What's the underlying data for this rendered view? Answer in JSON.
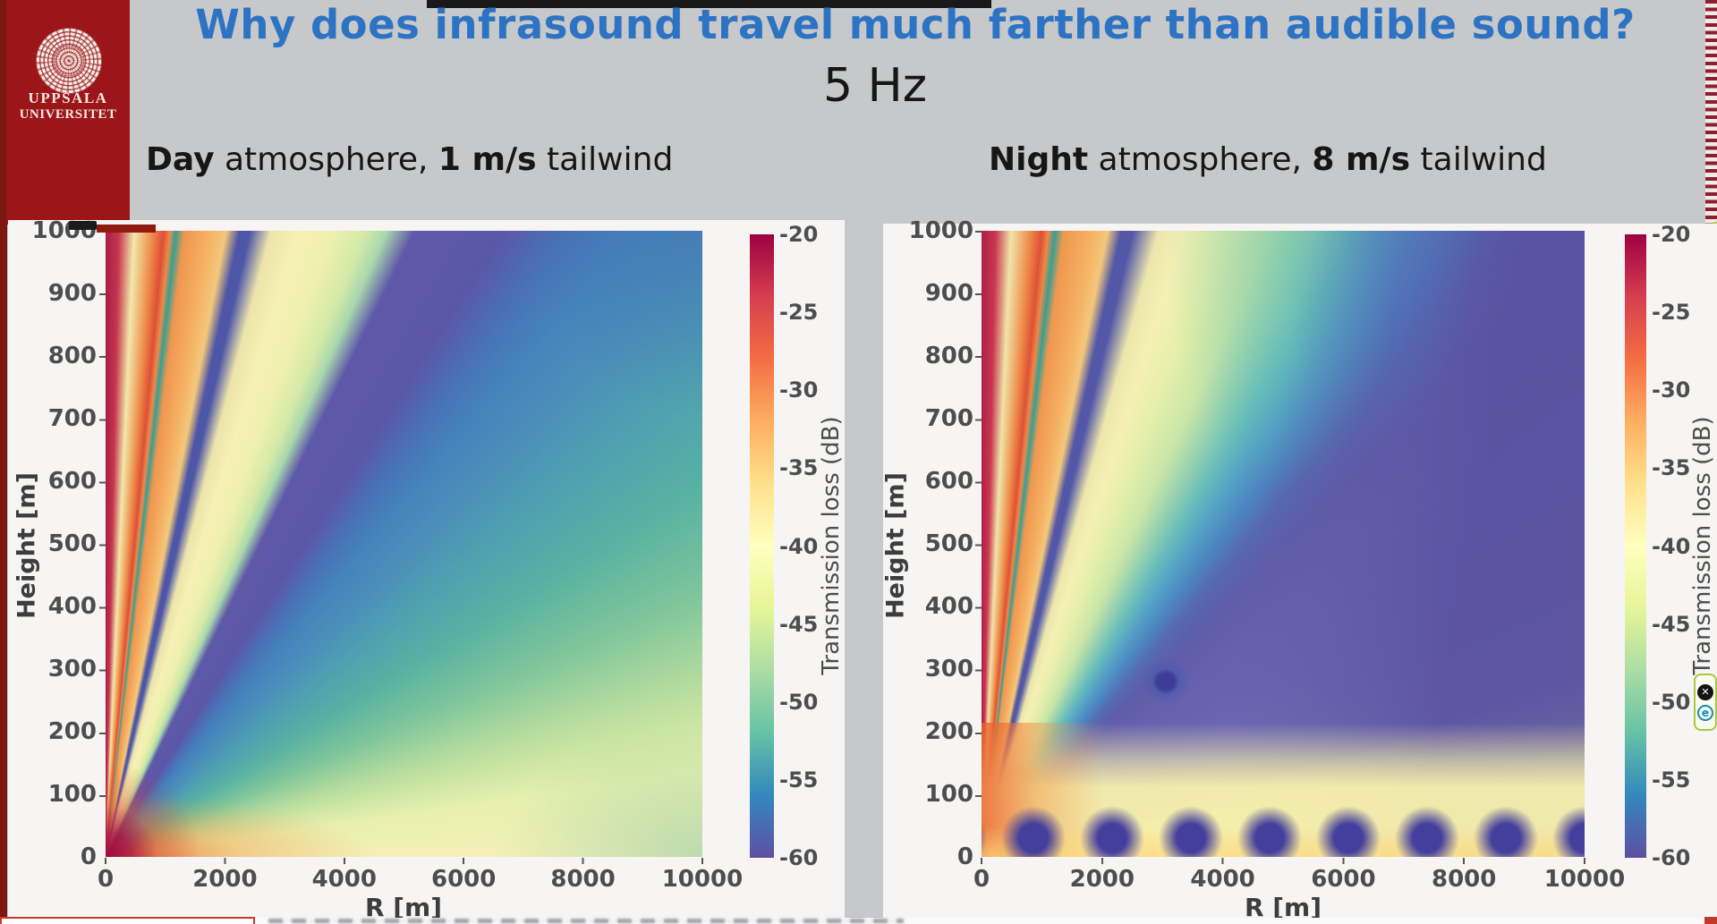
{
  "slide": {
    "title": "Why does infrasound travel much farther than audible sound?",
    "frequency_label": "5 Hz",
    "title_color": "#2d73c4",
    "background_color": "#c7c8c9",
    "headers": {
      "day": {
        "bold1": "Day",
        "text1": " atmosphere, ",
        "bold2": "1 m/s",
        "text2": " tailwind"
      },
      "night": {
        "bold1": "Night",
        "text1": " atmosphere, ",
        "bold2": "8 m/s",
        "text2": " tailwind"
      }
    }
  },
  "logo": {
    "line1": "UPPSALA",
    "line2": "UNIVERSITET",
    "block_color": "#9c1519"
  },
  "overlay_icons": {
    "close_label": "✕",
    "e_label": "e"
  },
  "chart_data": [
    {
      "type": "heatmap",
      "panel": "left",
      "condition": "Day atmosphere, 1 m/s tailwind",
      "frequency_hz": 5,
      "xlabel": "R [m]",
      "ylabel": "Height [m]",
      "xlim": [
        0,
        10000
      ],
      "ylim": [
        0,
        1000
      ],
      "x_ticks": [
        "0",
        "2000",
        "4000",
        "6000",
        "8000",
        "10000"
      ],
      "y_ticks": [
        "1000",
        "900",
        "800",
        "700",
        "600",
        "500",
        "400",
        "300",
        "200",
        "100",
        "0"
      ],
      "colorbar": {
        "label": "Transmission loss (dB)",
        "ticks": [
          "-20",
          "-25",
          "-30",
          "-35",
          "-40",
          "-45",
          "-50",
          "-55",
          "-60"
        ],
        "vmax_db": -20,
        "vmin_db": -60,
        "colormap": "Spectral",
        "stops": [
          "#9e0142",
          "#d53e4f",
          "#f46d43",
          "#fdae61",
          "#fee08b",
          "#ffffbf",
          "#e6f598",
          "#abdda4",
          "#66c2a5",
          "#3288bd",
          "#5e4fa2"
        ]
      },
      "features": [
        "Strong low-loss beams (-20 to -30 dB, red/orange) radiate steeply upward from the source at R < 2000 m",
        "Thin refraction nulls (teal/blue rays) between the beams, crossing the top near R = 700 m and R = 1500 m",
        "Broad upward-refracted shadow wedge (-55 to -60 dB, blue/purple band) from the source toward the upper right, crossing the top edge near R = 3500-5000 m",
        "Near-ground far field decays smoothly from ~-40 dB (pale yellow) at mid range to -50/-55 dB (green/teal) by R = 10000 m"
      ]
    },
    {
      "type": "heatmap",
      "panel": "right",
      "condition": "Night atmosphere, 8 m/s tailwind",
      "frequency_hz": 5,
      "xlabel": "R [m]",
      "ylabel": "Height [m]",
      "xlim": [
        0,
        10000
      ],
      "ylim": [
        0,
        1000
      ],
      "x_ticks": [
        "0",
        "2000",
        "4000",
        "6000",
        "8000",
        "10000"
      ],
      "y_ticks": [
        "1000",
        "900",
        "800",
        "700",
        "600",
        "500",
        "400",
        "300",
        "200",
        "100",
        "0"
      ],
      "colorbar": {
        "label": "Transmission loss (dB)",
        "ticks": [
          "-20",
          "-25",
          "-30",
          "-35",
          "-40",
          "-45",
          "-50",
          "-55",
          "-60"
        ],
        "vmax_db": -20,
        "vmin_db": -60,
        "colormap": "Spectral",
        "stops": [
          "#9e0142",
          "#d53e4f",
          "#f46d43",
          "#fdae61",
          "#fee08b",
          "#ffffbf",
          "#e6f598",
          "#abdda4",
          "#66c2a5",
          "#3288bd",
          "#5e4fa2"
        ]
      },
      "features": [
        "Surface duct: low loss (-35 to -45 dB, yellow/orange) maintained along the ground all the way to R = 10000 m",
        "Periodic deep nulls (-60 dB, dark blue spots) at the surface roughly every 1200-1400 m starting near R = 1800 m",
        "Isolated null (-60 dB) around R = 3100 m at height ~270 m",
        "Broad high-loss region (-55 to -60 dB, purple) above ~200 m beyond R = 5000 m",
        "Source beam fan (-20 to -30 dB) near R < 2000 m similar to the day case"
      ]
    }
  ]
}
